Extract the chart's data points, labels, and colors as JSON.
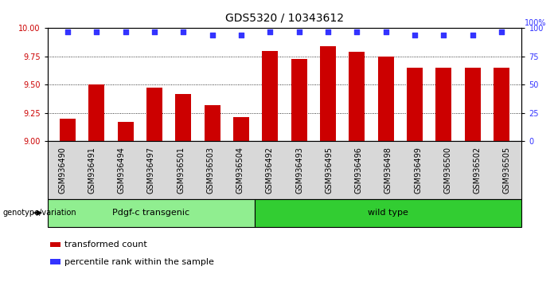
{
  "title": "GDS5320 / 10343612",
  "categories": [
    "GSM936490",
    "GSM936491",
    "GSM936494",
    "GSM936497",
    "GSM936501",
    "GSM936503",
    "GSM936504",
    "GSM936492",
    "GSM936493",
    "GSM936495",
    "GSM936496",
    "GSM936498",
    "GSM936499",
    "GSM936500",
    "GSM936502",
    "GSM936505"
  ],
  "bar_values": [
    9.2,
    9.5,
    9.17,
    9.47,
    9.42,
    9.32,
    9.21,
    9.8,
    9.73,
    9.84,
    9.79,
    9.75,
    9.65,
    9.65,
    9.65,
    9.65
  ],
  "percentile_values": [
    97,
    97,
    97,
    97,
    97,
    94,
    94,
    97,
    97,
    97,
    97,
    97,
    94,
    94,
    94,
    97
  ],
  "bar_color": "#cc0000",
  "dot_color": "#3333ff",
  "ylim_left": [
    9.0,
    10.0
  ],
  "ylim_right": [
    0,
    100
  ],
  "yticks_left": [
    9.0,
    9.25,
    9.5,
    9.75,
    10.0
  ],
  "yticks_right": [
    0,
    25,
    50,
    75,
    100
  ],
  "grid_values": [
    9.25,
    9.5,
    9.75
  ],
  "group1_label": "Pdgf-c transgenic",
  "group2_label": "wild type",
  "group1_count": 7,
  "group2_count": 9,
  "genotype_label": "genotype/variation",
  "legend_bar_label": "transformed count",
  "legend_dot_label": "percentile rank within the sample",
  "bg_color": "#d8d8d8",
  "group1_color": "#90ee90",
  "group2_color": "#32cd32",
  "title_fontsize": 10,
  "tick_fontsize": 7,
  "label_fontsize": 8
}
